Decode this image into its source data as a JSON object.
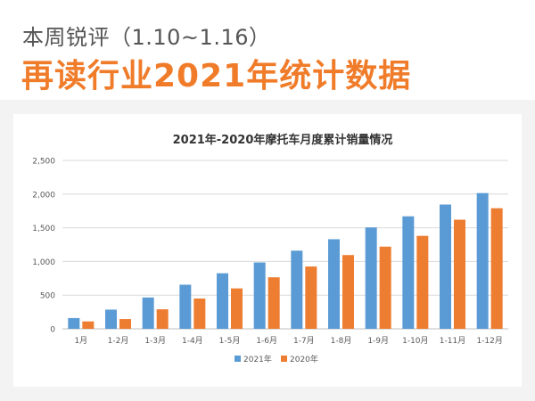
{
  "header": {
    "subtitle": "本周锐评（1.10~1.16）",
    "title": "再读行业2021年统计数据"
  },
  "chart_data": {
    "type": "bar",
    "title": "2021年-2020年摩托车月度累计销量情况",
    "xlabel": "",
    "ylabel": "",
    "categories": [
      "1月",
      "1-2月",
      "1-3月",
      "1-4月",
      "1-5月",
      "1-6月",
      "1-7月",
      "1-8月",
      "1-9月",
      "1-10月",
      "1-11月",
      "1-12月"
    ],
    "series": [
      {
        "name": "2021年",
        "color": "#5b9bd5",
        "values": [
          160,
          285,
          465,
          655,
          825,
          985,
          1160,
          1330,
          1505,
          1670,
          1845,
          2015
        ]
      },
      {
        "name": "2020年",
        "color": "#ed7d31",
        "values": [
          110,
          145,
          290,
          450,
          600,
          765,
          925,
          1095,
          1220,
          1380,
          1620,
          1790
        ]
      }
    ],
    "ylim": [
      0,
      2500
    ],
    "yticks": [
      "0",
      "500",
      "1,000",
      "1,500",
      "2,000",
      "2,500"
    ],
    "ytick_values": [
      0,
      500,
      1000,
      1500,
      2000,
      2500
    ],
    "grid": true,
    "legend_position": "bottom"
  }
}
